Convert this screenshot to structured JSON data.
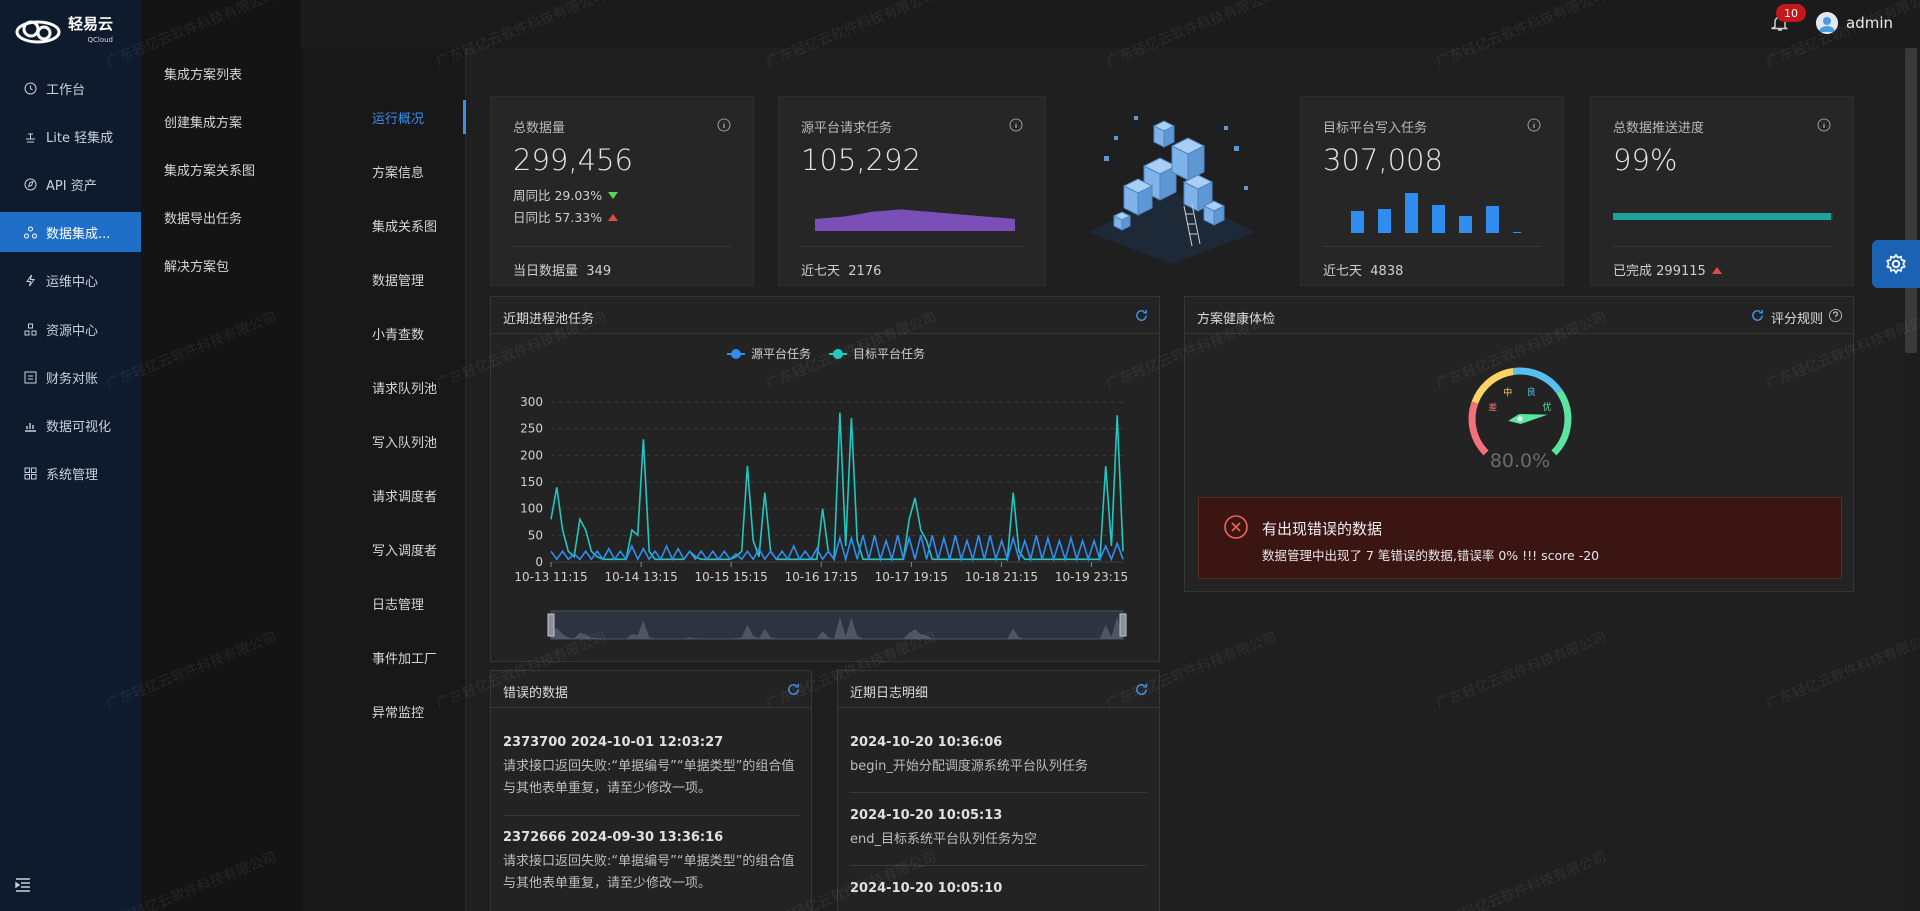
{
  "brand": {
    "name": "轻易云",
    "sub": "QCloud"
  },
  "sidebar": {
    "items": [
      {
        "label": "工作台",
        "icon": "clock-icon"
      },
      {
        "label": "Lite 轻集成",
        "icon": "lite-icon"
      },
      {
        "label": "API 资产",
        "icon": "compass-icon"
      },
      {
        "label": "数据集成...",
        "icon": "integration-icon"
      },
      {
        "label": "运维中心",
        "icon": "bolt-icon"
      },
      {
        "label": "资源中心",
        "icon": "resource-icon"
      },
      {
        "label": "财务对账",
        "icon": "finance-icon"
      },
      {
        "label": "数据可视化",
        "icon": "chart-icon"
      },
      {
        "label": "系统管理",
        "icon": "settings-grid-icon"
      }
    ]
  },
  "subnav": {
    "items": [
      "集成方案列表",
      "创建集成方案",
      "集成方案关系图",
      "数据导出任务",
      "解决方案包"
    ]
  },
  "innernav": {
    "items": [
      "运行概况",
      "方案信息",
      "集成关系图",
      "数据管理",
      "小青查数",
      "请求队列池",
      "写入队列池",
      "请求调度者",
      "写入调度者",
      "日志管理",
      "事件加工厂",
      "异常监控"
    ]
  },
  "topbar": {
    "badge": "10",
    "user": "admin"
  },
  "watermark": "广东轻亿云软件科技有限公司",
  "stats": {
    "total": {
      "title": "总数据量",
      "value": "299,456",
      "wow": "周同比 29.03%",
      "dod": "日同比 57.33%",
      "foot_label": "当日数据量",
      "foot_value": "349"
    },
    "source": {
      "title": "源平台请求任务",
      "value": "105,292",
      "foot_label": "近七天",
      "foot_value": "2176",
      "area": [
        10,
        11,
        12,
        14,
        16,
        17,
        18,
        17,
        16,
        15,
        14,
        13,
        12,
        11,
        10
      ]
    },
    "target": {
      "title": "目标平台写入任务",
      "value": "307,008",
      "foot_label": "近七天",
      "foot_value": "4838",
      "bars": [
        22,
        24,
        40,
        28,
        17,
        27,
        1
      ]
    },
    "progress": {
      "title": "总数据推送进度",
      "value": "99%",
      "percent": 99,
      "foot_label": "已完成",
      "foot_value": "299115"
    }
  },
  "process_panel": {
    "title": "近期进程池任务"
  },
  "health_panel": {
    "title": "方案健康体检",
    "rule_label": "评分规则"
  },
  "gauge": {
    "value_text": "80.0%",
    "value": 80,
    "labels": {
      "poor": "差",
      "medium": "中",
      "good": "良",
      "excellent": "优"
    }
  },
  "alert": {
    "title": "有出现错误的数据",
    "desc": "数据管理中出现了 7 笔错误的数据,错误率 0% !!! score -20"
  },
  "errors_panel": {
    "title": "错误的数据",
    "items": [
      {
        "head": "2373700 2024-10-01 12:03:27",
        "body": "请求接口返回失败:“单据编号”“单据类型”的组合值与其他表单重复，请至少修改一项。"
      },
      {
        "head": "2372666 2024-09-30 13:36:16",
        "body": "请求接口返回失败:“单据编号”“单据类型”的组合值与其他表单重复，请至少修改一项。"
      }
    ]
  },
  "logs_panel": {
    "title": "近期日志明细",
    "items": [
      {
        "head": "2024-10-20 10:36:06",
        "body": "begin_开始分配调度源系统平台队列任务"
      },
      {
        "head": "2024-10-20 10:05:13",
        "body": "end_目标系统平台队列任务为空"
      },
      {
        "head": "2024-10-20 10:05:10",
        "body": ""
      }
    ]
  },
  "chart_data": {
    "type": "line",
    "title": "近期进程池任务",
    "legend": [
      "源平台任务",
      "目标平台任务"
    ],
    "x_ticks": [
      "10-13 11:15",
      "10-14 13:15",
      "10-15 15:15",
      "10-16 17:15",
      "10-17 19:15",
      "10-18 21:15",
      "10-19 23:15"
    ],
    "y_ticks": [
      "0",
      "50",
      "100",
      "150",
      "200",
      "250",
      "300"
    ],
    "ylim": [
      0,
      300
    ],
    "series": [
      {
        "name": "源平台任务",
        "color": "#2f8df0",
        "values": [
          20,
          5,
          20,
          5,
          15,
          5,
          20,
          5,
          20,
          5,
          25,
          5,
          20,
          5,
          30,
          5,
          25,
          5,
          20,
          5,
          30,
          5,
          25,
          5,
          20,
          5,
          20,
          5,
          20,
          5,
          20,
          5,
          15,
          5,
          20,
          5,
          25,
          5,
          20,
          5,
          20,
          5,
          30,
          5,
          20,
          5,
          25,
          5,
          20,
          5,
          45,
          5,
          45,
          5,
          50,
          5,
          50,
          5,
          40,
          5,
          50,
          5,
          45,
          5,
          50,
          5,
          50,
          5,
          45,
          5,
          50,
          5,
          40,
          5,
          50,
          5,
          50,
          5,
          40,
          5,
          45,
          5,
          40,
          5,
          50,
          5,
          45,
          5,
          40,
          5,
          45,
          5,
          40,
          5,
          40,
          5,
          30,
          5,
          35,
          5
        ]
      },
      {
        "name": "目标平台任务",
        "color": "#1fc8c0",
        "values": [
          80,
          140,
          60,
          20,
          10,
          80,
          60,
          20,
          10,
          5,
          5,
          5,
          5,
          5,
          60,
          50,
          230,
          20,
          5,
          5,
          5,
          5,
          5,
          5,
          20,
          10,
          5,
          5,
          5,
          5,
          5,
          5,
          10,
          20,
          180,
          40,
          10,
          130,
          20,
          5,
          5,
          5,
          5,
          5,
          5,
          5,
          5,
          100,
          20,
          5,
          280,
          30,
          270,
          40,
          5,
          5,
          5,
          5,
          5,
          5,
          5,
          5,
          80,
          120,
          60,
          40,
          5,
          5,
          5,
          5,
          5,
          5,
          5,
          5,
          5,
          5,
          5,
          5,
          5,
          5,
          130,
          20,
          5,
          5,
          5,
          5,
          5,
          5,
          5,
          5,
          5,
          5,
          5,
          5,
          5,
          5,
          180,
          30,
          275,
          20
        ]
      }
    ]
  }
}
